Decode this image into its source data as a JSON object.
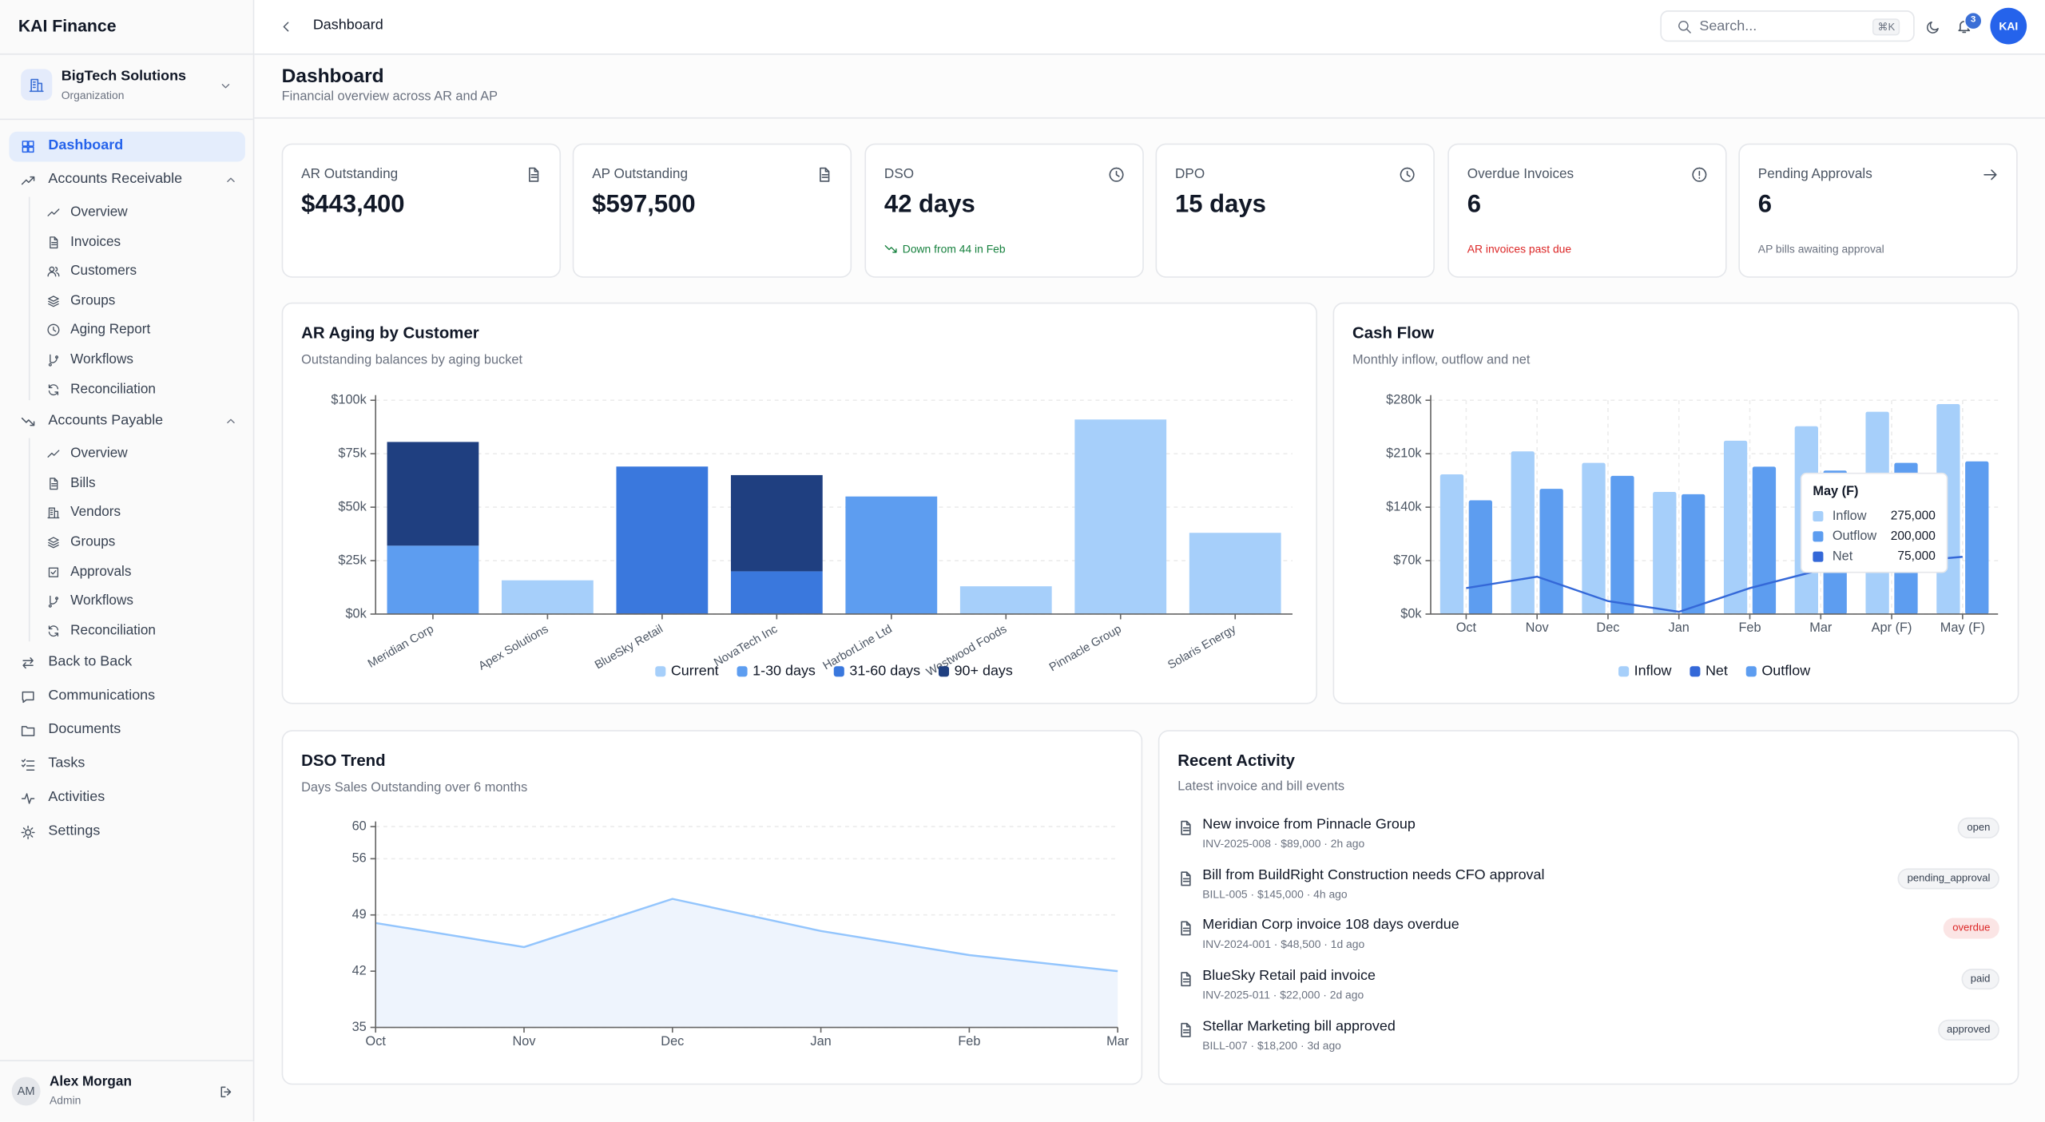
{
  "sidebar": {
    "brand": "KAI Finance",
    "org": {
      "name": "BigTech Solutions",
      "type": "Organization"
    },
    "nav": [
      {
        "label": "Dashboard",
        "active": true
      },
      {
        "label": "Accounts Receivable",
        "children": [
          "Overview",
          "Invoices",
          "Customers",
          "Groups",
          "Aging Report",
          "Workflows",
          "Reconciliation"
        ]
      },
      {
        "label": "Accounts Payable",
        "children": [
          "Overview",
          "Bills",
          "Vendors",
          "Groups",
          "Approvals",
          "Workflows",
          "Reconciliation"
        ]
      },
      {
        "label": "Back to Back"
      },
      {
        "label": "Communications"
      },
      {
        "label": "Documents"
      },
      {
        "label": "Tasks"
      },
      {
        "label": "Activities"
      },
      {
        "label": "Settings"
      }
    ],
    "user": {
      "initials": "AM",
      "name": "Alex Morgan",
      "role": "Admin"
    }
  },
  "topbar": {
    "breadcrumb": "Dashboard",
    "search_placeholder": "Search...",
    "shortcut": "⌘K",
    "notifications": 3,
    "avatar": "KAI"
  },
  "header": {
    "title": "Dashboard",
    "subtitle": "Financial overview across AR and AP"
  },
  "kpis": [
    {
      "label": "AR Outstanding",
      "value": "$443,400"
    },
    {
      "label": "AP Outstanding",
      "value": "$597,500"
    },
    {
      "label": "DSO",
      "value": "42 days",
      "note": "Down from 44 in Feb",
      "note_color": "#15803d"
    },
    {
      "label": "DPO",
      "value": "15 days"
    },
    {
      "label": "Overdue Invoices",
      "value": 6,
      "note": "AR invoices past due",
      "note_color": "#dc2626"
    },
    {
      "label": "Pending Approvals",
      "value": 6,
      "note": "AP bills awaiting approval",
      "note_color": "#6b7280"
    }
  ],
  "chart_data": [
    {
      "type": "bar",
      "stacked": true,
      "title": "AR Aging by Customer",
      "subtitle": "Outstanding balances by aging bucket",
      "categories": [
        "Meridian Corp",
        "Apex Solutions",
        "BlueSky Retail",
        "NovaTech Inc",
        "HarborLine Ltd",
        "Westwood Foods",
        "Pinnacle Group",
        "Solaris Energy"
      ],
      "series": [
        {
          "name": "Current",
          "color": "#a6cffa",
          "values": [
            0,
            15800,
            0,
            0,
            0,
            13000,
            91000,
            38000
          ]
        },
        {
          "name": "1-30 days",
          "color": "#5d9df0",
          "values": [
            32000,
            0,
            0,
            0,
            55000,
            0,
            0,
            0
          ]
        },
        {
          "name": "31-60 days",
          "color": "#3a78dd",
          "values": [
            0,
            0,
            69000,
            20000,
            0,
            0,
            0,
            0
          ]
        },
        {
          "name": "90+ days",
          "color": "#1f3f80",
          "values": [
            48500,
            0,
            0,
            45000,
            0,
            0,
            0,
            0
          ]
        }
      ],
      "ylim": [
        0,
        100000
      ],
      "yticks": [
        {
          "value": 0,
          "label": "$0k"
        },
        {
          "value": 25000,
          "label": "$25k"
        },
        {
          "value": 50000,
          "label": "$50k"
        },
        {
          "value": 75000,
          "label": "$75k"
        },
        {
          "value": 100000,
          "label": "$100k"
        }
      ],
      "grid": true,
      "legend": "bottom"
    },
    {
      "type": "bar",
      "stacked": false,
      "title": "Cash Flow",
      "subtitle": "Monthly inflow, outflow and net",
      "categories": [
        "Oct",
        "Nov",
        "Dec",
        "Jan",
        "Feb",
        "Mar",
        "Apr (F)",
        "May (F)"
      ],
      "series": [
        {
          "name": "Inflow",
          "color": "#a6cffa",
          "values": [
            183000,
            213000,
            198000,
            160000,
            227000,
            246000,
            265000,
            275000
          ]
        },
        {
          "name": "Net",
          "type": "line",
          "color": "#3468d8",
          "values": [
            34000,
            49000,
            17000,
            3000,
            34000,
            58000,
            67000,
            75000
          ]
        },
        {
          "name": "Outflow",
          "color": "#5d9df0",
          "values": [
            149000,
            164000,
            181000,
            157000,
            193000,
            188000,
            198000,
            200000
          ]
        }
      ],
      "ylim": [
        0,
        280000
      ],
      "yticks": [
        {
          "value": 0,
          "label": "$0k"
        },
        {
          "value": 70000,
          "label": "$70k"
        },
        {
          "value": 140000,
          "label": "$140k"
        },
        {
          "value": 210000,
          "label": "$210k"
        },
        {
          "value": 280000,
          "label": "$280k"
        }
      ],
      "grid": true,
      "legend": "bottom",
      "tooltip": {
        "title": "May (F)",
        "items": [
          {
            "name": "Inflow",
            "value": "275,000"
          },
          {
            "name": "Outflow",
            "value": "200,000"
          },
          {
            "name": "Net",
            "value": "75,000"
          }
        ]
      }
    },
    {
      "type": "area",
      "title": "DSO Trend",
      "subtitle": "Days Sales Outstanding over 6 months",
      "categories": [
        "Oct",
        "Nov",
        "Dec",
        "Jan",
        "Feb",
        "Mar"
      ],
      "values": [
        48,
        45,
        51,
        47,
        44,
        42
      ],
      "color": "#93c5fd",
      "ylim": [
        35,
        60
      ],
      "yticks": [
        35,
        42,
        49,
        56,
        60
      ],
      "grid": true
    }
  ],
  "activity": {
    "title": "Recent Activity",
    "subtitle": "Latest invoice and bill events",
    "items": [
      {
        "title": "New invoice from Pinnacle Group",
        "meta": "INV-2025-008 · $89,000 · 2h ago",
        "status": "open"
      },
      {
        "title": "Bill from BuildRight Construction needs CFO approval",
        "meta": "BILL-005 · $145,000 · 4h ago",
        "status": "pending_approval"
      },
      {
        "title": "Meridian Corp invoice 108 days overdue",
        "meta": "INV-2024-001 · $48,500 · 1d ago",
        "status": "overdue",
        "status_color": "#dc2626"
      },
      {
        "title": "BlueSky Retail paid invoice",
        "meta": "INV-2025-011 · $22,000 · 2d ago",
        "status": "paid"
      },
      {
        "title": "Stellar Marketing bill approved",
        "meta": "BILL-007 · $18,200 · 3d ago",
        "status": "approved"
      }
    ]
  }
}
